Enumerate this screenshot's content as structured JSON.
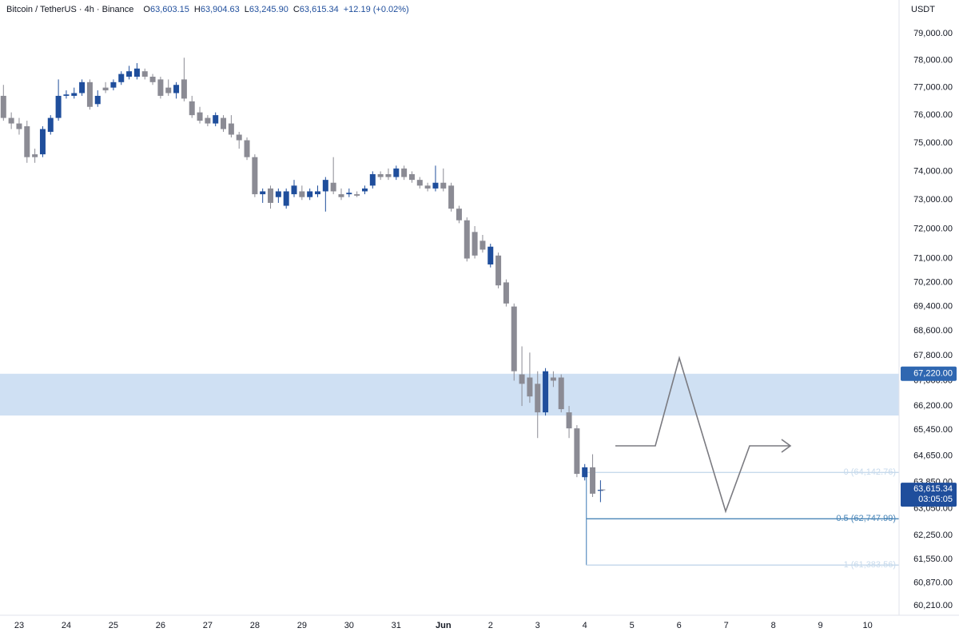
{
  "header": {
    "symbol": "Bitcoin / TetherUS · 4h · Binance",
    "ohlc": [
      {
        "key": "O",
        "value": "63,603.15"
      },
      {
        "key": "H",
        "value": "63,904.63"
      },
      {
        "key": "L",
        "value": "63,245.90"
      },
      {
        "key": "C",
        "value": "63,615.34"
      }
    ],
    "change": "+12.19 (+0.02%)"
  },
  "chart_data": {
    "type": "candlestick",
    "unit": "USDT",
    "log_scale": true,
    "grid": false,
    "up_color": "#1f4e9c",
    "down_color": "#8b8b94",
    "open": [
      76700,
      75900,
      75700,
      75600,
      74600,
      74600,
      75400,
      75900,
      76700,
      76700,
      76800,
      77200,
      76400,
      77000,
      77000,
      77200,
      77400,
      77400,
      77600,
      77400,
      77300,
      77000,
      76800,
      77300,
      76500,
      76100,
      75900,
      75700,
      75900,
      75700,
      75300,
      75100,
      74500,
      73200,
      73400,
      73100,
      72800,
      73200,
      73300,
      73100,
      73200,
      73300,
      73600,
      73200,
      73200,
      73200,
      73300,
      73500,
      73900,
      73900,
      73800,
      74100,
      73900,
      73700,
      73500,
      73400,
      73600,
      73500,
      72700,
      72300,
      71900,
      71600,
      70800,
      71100,
      70200,
      69400,
      67200,
      67100,
      66900,
      66000,
      67100,
      67100,
      66000,
      65500,
      64000,
      64300,
      63603.15
    ],
    "high": [
      77100,
      76100,
      75900,
      75800,
      74800,
      75600,
      76000,
      77300,
      76900,
      77000,
      77300,
      77300,
      76900,
      77200,
      77300,
      77600,
      77800,
      77900,
      77700,
      77500,
      77400,
      77300,
      77200,
      78100,
      76700,
      76300,
      76000,
      76100,
      76000,
      76000,
      75400,
      75200,
      74600,
      73400,
      73500,
      73400,
      73400,
      73700,
      73500,
      73400,
      73500,
      73800,
      74500,
      73400,
      73400,
      73300,
      73500,
      74000,
      74000,
      74100,
      74200,
      74200,
      74000,
      73800,
      73600,
      74200,
      74100,
      73600,
      72800,
      72400,
      72100,
      71800,
      71500,
      71200,
      70300,
      69500,
      68100,
      67900,
      67300,
      67400,
      67300,
      67200,
      66200,
      65600,
      64400,
      64700,
      63904.63
    ],
    "low": [
      75800,
      75500,
      75300,
      74300,
      74300,
      74500,
      75300,
      75800,
      76600,
      76600,
      76700,
      76200,
      76300,
      76800,
      76900,
      77100,
      77300,
      77300,
      77300,
      77100,
      76600,
      76700,
      76600,
      76500,
      75900,
      75700,
      75600,
      75600,
      75400,
      75200,
      74800,
      74400,
      73100,
      72900,
      72700,
      72900,
      72700,
      73100,
      73000,
      73000,
      73100,
      72600,
      73200,
      73000,
      73100,
      73100,
      73200,
      73400,
      73700,
      73700,
      73700,
      73700,
      73600,
      73400,
      73300,
      73300,
      73300,
      72600,
      72200,
      70900,
      71000,
      71200,
      70700,
      70000,
      69400,
      67000,
      66200,
      66300,
      65200,
      65900,
      66800,
      66000,
      65200,
      64000,
      63900,
      63400,
      63245.9
    ],
    "close": [
      75900,
      75700,
      75500,
      74500,
      74500,
      75500,
      75900,
      76700,
      76750,
      76800,
      77200,
      76300,
      76700,
      76900,
      77200,
      77500,
      77600,
      77700,
      77400,
      77200,
      76700,
      76800,
      77100,
      76600,
      76000,
      75800,
      75700,
      76000,
      75500,
      75300,
      75100,
      74500,
      73200,
      73300,
      72900,
      73300,
      73300,
      73500,
      73100,
      73300,
      73300,
      73700,
      73300,
      73100,
      73250,
      73150,
      73400,
      73900,
      73800,
      73800,
      74100,
      73800,
      73700,
      73500,
      73400,
      73600,
      73400,
      72700,
      72300,
      71000,
      71100,
      71300,
      71400,
      70100,
      69500,
      67300,
      66900,
      66500,
      66000,
      67300,
      67000,
      66100,
      65500,
      64100,
      64300,
      63500,
      63615.34
    ],
    "ylim": [
      59940,
      80270
    ],
    "yticks": [
      {
        "value": 79000,
        "label": "79,000.00"
      },
      {
        "value": 78000,
        "label": "78,000.00"
      },
      {
        "value": 77000,
        "label": "77,000.00"
      },
      {
        "value": 76000,
        "label": "76,000.00"
      },
      {
        "value": 75000,
        "label": "75,000.00"
      },
      {
        "value": 74000,
        "label": "74,000.00"
      },
      {
        "value": 73000,
        "label": "73,000.00"
      },
      {
        "value": 72000,
        "label": "72,000.00"
      },
      {
        "value": 71000,
        "label": "71,000.00"
      },
      {
        "value": 70200,
        "label": "70,200.00"
      },
      {
        "value": 69400,
        "label": "69,400.00"
      },
      {
        "value": 68600,
        "label": "68,600.00"
      },
      {
        "value": 67800,
        "label": "67,800.00"
      },
      {
        "value": 67000,
        "label": "67,000.00"
      },
      {
        "value": 66200,
        "label": "66,200.00"
      },
      {
        "value": 65450,
        "label": "65,450.00"
      },
      {
        "value": 64650,
        "label": "64,650.00"
      },
      {
        "value": 63850,
        "label": "63,850.00"
      },
      {
        "value": 63050,
        "label": "63,050.00"
      },
      {
        "value": 62250,
        "label": "62,250.00"
      },
      {
        "value": 61550,
        "label": "61,550.00"
      },
      {
        "value": 60870,
        "label": "60,870.00"
      },
      {
        "value": 60210,
        "label": "60,210.00"
      }
    ],
    "xticks": [
      {
        "value": 2,
        "label": "23"
      },
      {
        "value": 8,
        "label": "24"
      },
      {
        "value": 14,
        "label": "25"
      },
      {
        "value": 20,
        "label": "26"
      },
      {
        "value": 26,
        "label": "27"
      },
      {
        "value": 32,
        "label": "28"
      },
      {
        "value": 38,
        "label": "29"
      },
      {
        "value": 44,
        "label": "30"
      },
      {
        "value": 50,
        "label": "31"
      },
      {
        "value": 56,
        "label": "Jun"
      },
      {
        "value": 62,
        "label": "2"
      },
      {
        "value": 68,
        "label": "3"
      },
      {
        "value": 74,
        "label": "4"
      },
      {
        "value": 80,
        "label": "5"
      },
      {
        "value": 86,
        "label": "6"
      },
      {
        "value": 92,
        "label": "7"
      },
      {
        "value": 98,
        "label": "8"
      },
      {
        "value": 104,
        "label": "9"
      },
      {
        "value": 110,
        "label": "10"
      }
    ],
    "zone": {
      "low": 65900,
      "high": {
        "value": 67220,
        "label": "67,220.00"
      },
      "color": "#cfe0f3"
    },
    "fib": [
      {
        "value": 64142.76,
        "label": "0 (64,142.76)"
      },
      {
        "value": 62747.99,
        "label": "0.5 (62,747.99)"
      },
      {
        "value": 61383.56,
        "label": "1 (61,383.56)"
      }
    ],
    "last_price": {
      "value": 63615.34,
      "label": "63,615.34"
    },
    "countdown": "03:05:05"
  }
}
